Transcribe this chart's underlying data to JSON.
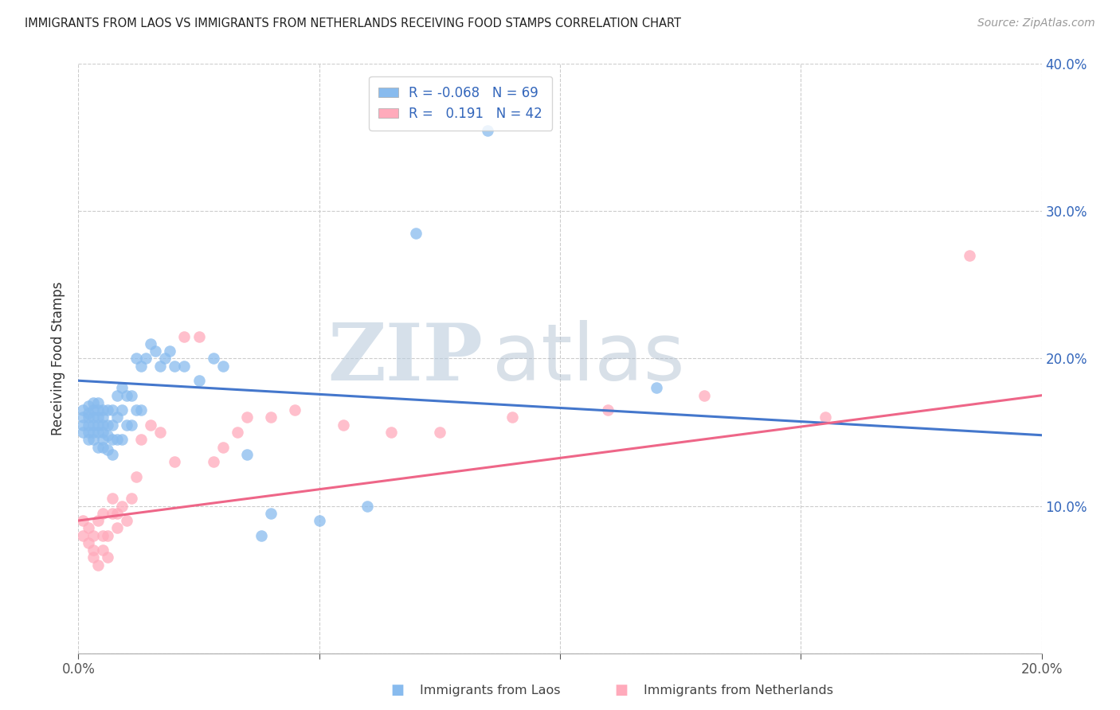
{
  "title": "IMMIGRANTS FROM LAOS VS IMMIGRANTS FROM NETHERLANDS RECEIVING FOOD STAMPS CORRELATION CHART",
  "source": "Source: ZipAtlas.com",
  "ylabel": "Receiving Food Stamps",
  "x_label_bottom_left": "Immigrants from Laos",
  "x_label_bottom_right": "Immigrants from Netherlands",
  "x_min": 0.0,
  "x_max": 0.2,
  "y_min": 0.0,
  "y_max": 0.4,
  "legend_R_blue": "-0.068",
  "legend_N_blue": "69",
  "legend_R_pink": "0.191",
  "legend_N_pink": "42",
  "blue_color": "#88BBEE",
  "pink_color": "#FFAABB",
  "blue_line_color": "#4477CC",
  "pink_line_color": "#EE6688",
  "watermark_zip": "ZIP",
  "watermark_atlas": "atlas",
  "blue_line_x0": 0.0,
  "blue_line_y0": 0.185,
  "blue_line_x1": 0.2,
  "blue_line_y1": 0.148,
  "pink_line_x0": 0.0,
  "pink_line_y0": 0.09,
  "pink_line_x1": 0.2,
  "pink_line_y1": 0.175,
  "laos_x": [
    0.001,
    0.001,
    0.001,
    0.001,
    0.002,
    0.002,
    0.002,
    0.002,
    0.002,
    0.002,
    0.003,
    0.003,
    0.003,
    0.003,
    0.003,
    0.003,
    0.004,
    0.004,
    0.004,
    0.004,
    0.004,
    0.004,
    0.005,
    0.005,
    0.005,
    0.005,
    0.005,
    0.005,
    0.006,
    0.006,
    0.006,
    0.006,
    0.007,
    0.007,
    0.007,
    0.007,
    0.008,
    0.008,
    0.008,
    0.009,
    0.009,
    0.009,
    0.01,
    0.01,
    0.011,
    0.011,
    0.012,
    0.012,
    0.013,
    0.013,
    0.014,
    0.015,
    0.016,
    0.017,
    0.018,
    0.019,
    0.02,
    0.022,
    0.025,
    0.028,
    0.03,
    0.035,
    0.038,
    0.04,
    0.05,
    0.06,
    0.07,
    0.085,
    0.12
  ],
  "laos_y": [
    0.15,
    0.155,
    0.16,
    0.165,
    0.145,
    0.15,
    0.155,
    0.16,
    0.163,
    0.168,
    0.145,
    0.15,
    0.155,
    0.16,
    0.165,
    0.17,
    0.14,
    0.15,
    0.155,
    0.16,
    0.165,
    0.17,
    0.14,
    0.145,
    0.15,
    0.155,
    0.16,
    0.165,
    0.138,
    0.148,
    0.155,
    0.165,
    0.135,
    0.145,
    0.155,
    0.165,
    0.145,
    0.16,
    0.175,
    0.145,
    0.165,
    0.18,
    0.155,
    0.175,
    0.155,
    0.175,
    0.165,
    0.2,
    0.165,
    0.195,
    0.2,
    0.21,
    0.205,
    0.195,
    0.2,
    0.205,
    0.195,
    0.195,
    0.185,
    0.2,
    0.195,
    0.135,
    0.08,
    0.095,
    0.09,
    0.1,
    0.285,
    0.355,
    0.18
  ],
  "netherlands_x": [
    0.001,
    0.001,
    0.002,
    0.002,
    0.003,
    0.003,
    0.003,
    0.004,
    0.004,
    0.005,
    0.005,
    0.005,
    0.006,
    0.006,
    0.007,
    0.007,
    0.008,
    0.008,
    0.009,
    0.01,
    0.011,
    0.012,
    0.013,
    0.015,
    0.017,
    0.02,
    0.022,
    0.025,
    0.028,
    0.03,
    0.033,
    0.035,
    0.04,
    0.045,
    0.055,
    0.065,
    0.075,
    0.09,
    0.11,
    0.13,
    0.155,
    0.185
  ],
  "netherlands_y": [
    0.09,
    0.08,
    0.075,
    0.085,
    0.065,
    0.07,
    0.08,
    0.06,
    0.09,
    0.07,
    0.08,
    0.095,
    0.065,
    0.08,
    0.095,
    0.105,
    0.085,
    0.095,
    0.1,
    0.09,
    0.105,
    0.12,
    0.145,
    0.155,
    0.15,
    0.13,
    0.215,
    0.215,
    0.13,
    0.14,
    0.15,
    0.16,
    0.16,
    0.165,
    0.155,
    0.15,
    0.15,
    0.16,
    0.165,
    0.175,
    0.16,
    0.27
  ]
}
